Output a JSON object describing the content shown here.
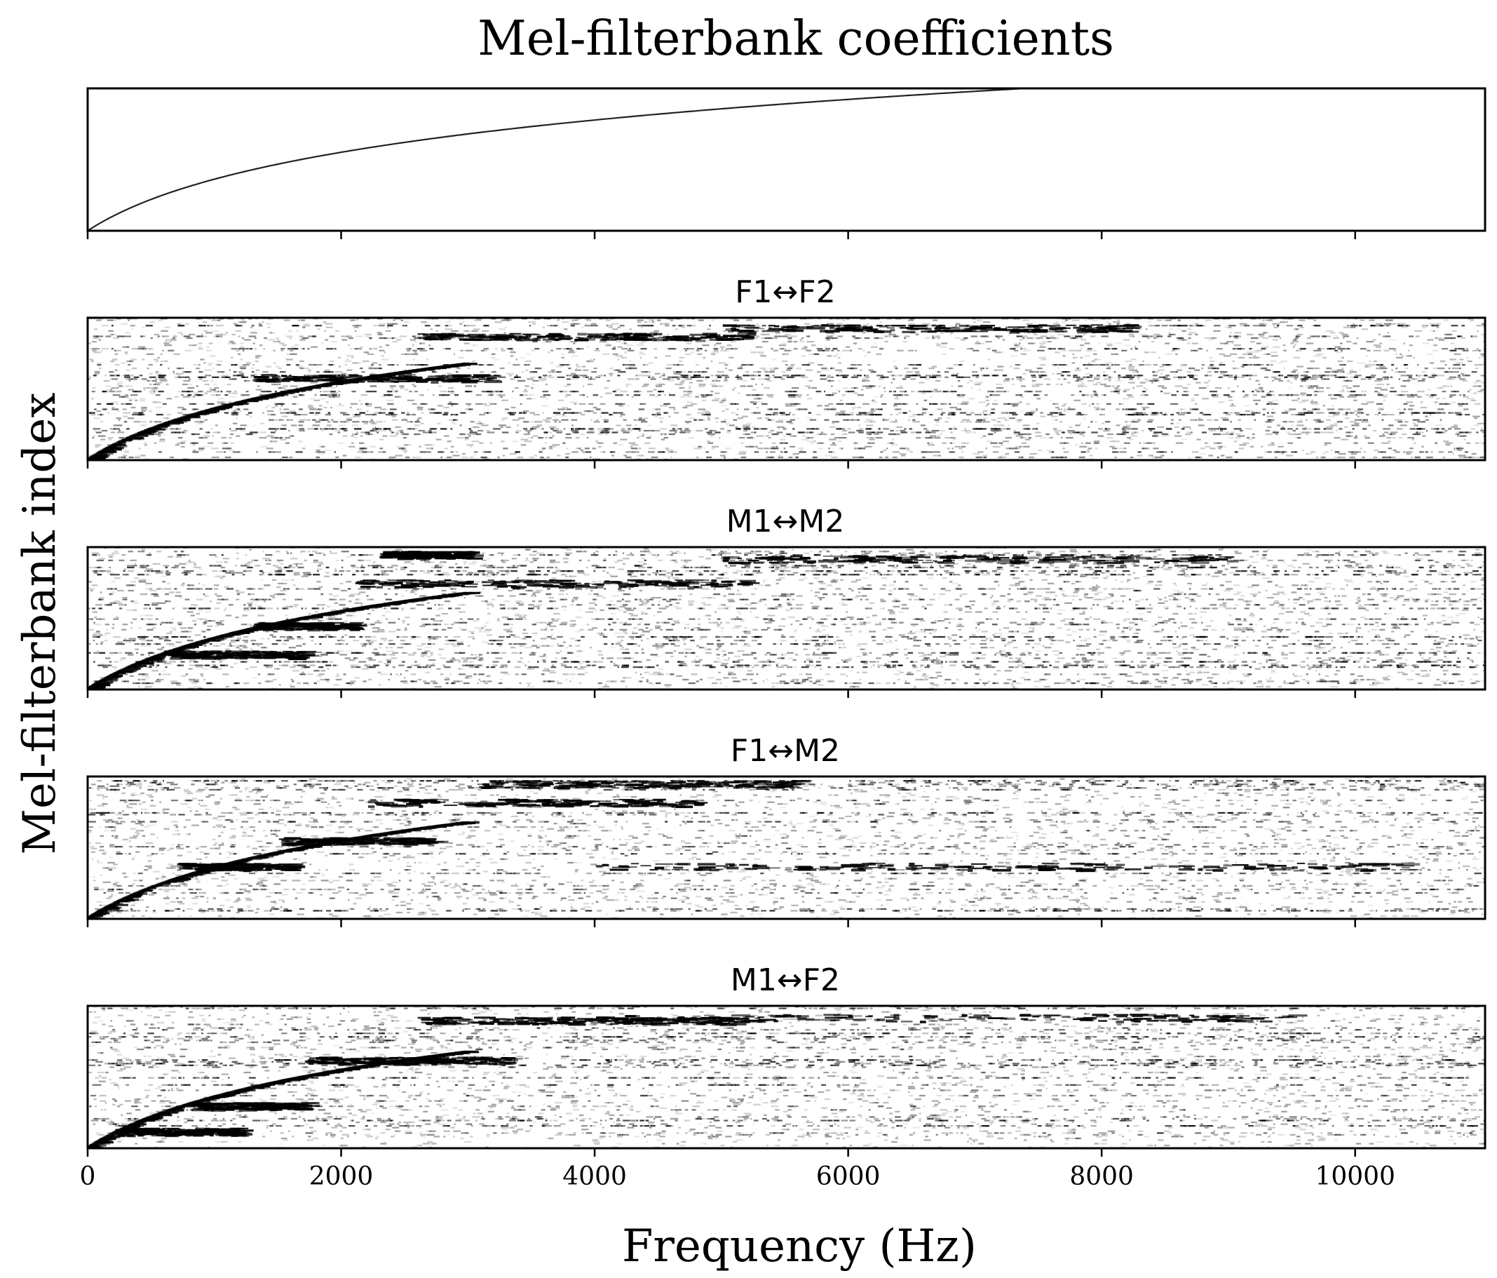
{
  "chart_data": {
    "type": "heatmap",
    "title": "Mel-filterbank coefficients",
    "xlabel": "Frequency (Hz)",
    "ylabel": "Mel-filterbank index",
    "xlim": [
      0,
      11025
    ],
    "xticks": [
      0,
      2000,
      4000,
      6000,
      8000,
      10000
    ],
    "xtick_labels": [
      "0",
      "2000",
      "4000",
      "6000",
      "8000",
      "10000"
    ],
    "n_filters": 80,
    "colormap": "gray_r",
    "panels": [
      {
        "title": "",
        "kind": "reference_mel_filterbank",
        "description_scale": "mel"
      },
      {
        "title": "F1↔F2",
        "kind": "learned_matrix",
        "seed": 11,
        "ridges": [
          {
            "f_start": 1300,
            "f_end": 3200,
            "row": 0.58
          },
          {
            "f_start": 2600,
            "f_end": 5200,
            "row": 0.87
          },
          {
            "f_start": 5000,
            "f_end": 8200,
            "row": 0.93
          }
        ]
      },
      {
        "title": "M1↔M2",
        "kind": "learned_matrix",
        "seed": 23,
        "ridges": [
          {
            "f_start": 600,
            "f_end": 1700,
            "row": 0.25
          },
          {
            "f_start": 1300,
            "f_end": 2100,
            "row": 0.45
          },
          {
            "f_start": 2100,
            "f_end": 5200,
            "row": 0.75
          },
          {
            "f_start": 2300,
            "f_end": 3000,
            "row": 0.95
          },
          {
            "f_start": 5000,
            "f_end": 9000,
            "row": 0.92
          }
        ]
      },
      {
        "title": "F1↔M2",
        "kind": "learned_matrix",
        "seed": 37,
        "ridges": [
          {
            "f_start": 700,
            "f_end": 1600,
            "row": 0.37
          },
          {
            "f_start": 1500,
            "f_end": 2700,
            "row": 0.55
          },
          {
            "f_start": 2200,
            "f_end": 4800,
            "row": 0.82
          },
          {
            "f_start": 3000,
            "f_end": 5600,
            "row": 0.95
          },
          {
            "f_start": 4000,
            "f_end": 10500,
            "row": 0.37
          }
        ]
      },
      {
        "title": "M1↔F2",
        "kind": "learned_matrix",
        "seed": 53,
        "ridges": [
          {
            "f_start": 200,
            "f_end": 1200,
            "row": 0.12
          },
          {
            "f_start": 800,
            "f_end": 1700,
            "row": 0.3
          },
          {
            "f_start": 1700,
            "f_end": 3300,
            "row": 0.62
          },
          {
            "f_start": 2600,
            "f_end": 5200,
            "row": 0.9
          },
          {
            "f_start": 4000,
            "f_end": 9500,
            "row": 0.92
          }
        ]
      }
    ]
  }
}
